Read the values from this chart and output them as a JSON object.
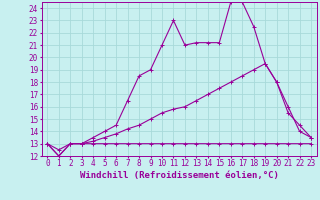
{
  "xlabel": "Windchill (Refroidissement éolien,°C)",
  "xlim": [
    -0.5,
    23.5
  ],
  "ylim": [
    12,
    24.5
  ],
  "xticks": [
    0,
    1,
    2,
    3,
    4,
    5,
    6,
    7,
    8,
    9,
    10,
    11,
    12,
    13,
    14,
    15,
    16,
    17,
    18,
    19,
    20,
    21,
    22,
    23
  ],
  "yticks": [
    12,
    13,
    14,
    15,
    16,
    17,
    18,
    19,
    20,
    21,
    22,
    23,
    24
  ],
  "background_color": "#c8f0f0",
  "grid_color": "#a8dada",
  "line_color": "#990099",
  "line1_y": [
    13,
    12,
    13,
    13,
    13,
    13,
    13,
    13,
    13,
    13,
    13,
    13,
    13,
    13,
    13,
    13,
    13,
    13,
    13,
    13,
    13,
    13,
    13,
    13
  ],
  "line2_y": [
    13,
    12.5,
    13,
    13,
    13.2,
    13.5,
    13.8,
    14.2,
    14.5,
    15,
    15.5,
    15.8,
    16,
    16.5,
    17,
    17.5,
    18,
    18.5,
    19,
    19.5,
    18,
    16,
    14,
    13.5
  ],
  "line3_y": [
    13,
    12,
    13,
    13,
    13.5,
    14,
    14.5,
    16.5,
    18.5,
    19,
    21,
    23,
    21,
    21.2,
    21.2,
    21.2,
    24.5,
    24.5,
    22.5,
    19.5,
    18,
    15.5,
    14.5,
    13.5
  ],
  "tick_fontsize": 5.5,
  "label_fontsize": 6.5
}
